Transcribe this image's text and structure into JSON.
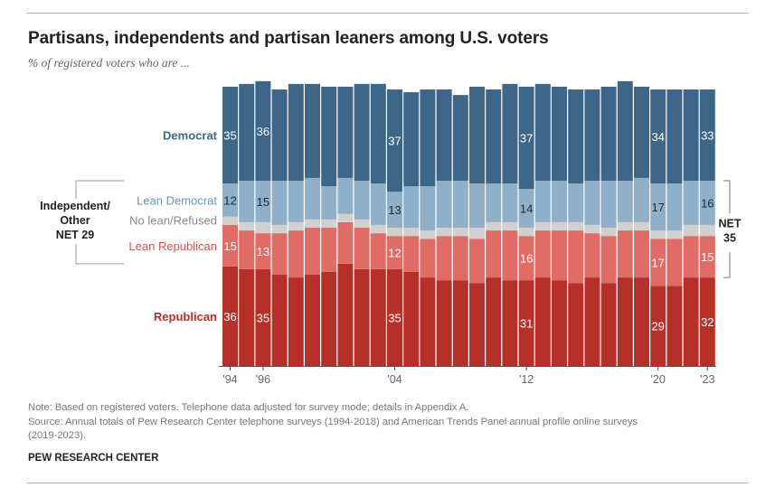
{
  "title": "Partisans, independents and partisan leaners among U.S. voters",
  "subtitle": "% of registered voters who are ...",
  "chart_data": {
    "type": "bar",
    "stacked": true,
    "y_unit": "%",
    "ylim": [
      0,
      100
    ],
    "years": [
      1994,
      1995,
      1996,
      1997,
      1998,
      1999,
      2000,
      2001,
      2002,
      2003,
      2004,
      2005,
      2006,
      2007,
      2008,
      2009,
      2010,
      2011,
      2012,
      2013,
      2014,
      2015,
      2016,
      2017,
      2018,
      2019,
      2020,
      2021,
      2022,
      2023
    ],
    "series": [
      {
        "name": "Republican",
        "color": "#b6302a",
        "values": [
          36,
          35,
          35,
          33,
          32,
          33,
          34,
          37,
          35,
          35,
          35,
          34,
          32,
          31,
          31,
          30,
          32,
          31,
          31,
          32,
          31,
          30,
          32,
          30,
          32,
          32,
          29,
          29,
          32,
          32
        ]
      },
      {
        "name": "Lean Republican",
        "color": "#e06c66",
        "values": [
          15,
          14,
          13,
          15,
          17,
          17,
          16,
          15,
          15,
          13,
          12,
          13,
          14,
          16,
          16,
          16,
          17,
          18,
          16,
          17,
          18,
          19,
          16,
          17,
          17,
          17,
          17,
          17,
          15,
          15
        ]
      },
      {
        "name": "No lean/Refused",
        "color": "#d0d0d0",
        "values": [
          3,
          3,
          4,
          3,
          3,
          3,
          3,
          3,
          3,
          3,
          3,
          3,
          3,
          3,
          3,
          4,
          3,
          3,
          3,
          3,
          3,
          3,
          3,
          3,
          3,
          3,
          3,
          3,
          4,
          4
        ]
      },
      {
        "name": "Lean Democrat",
        "color": "#8fb0c8",
        "values": [
          12,
          15,
          15,
          16,
          15,
          15,
          12,
          13,
          14,
          15,
          13,
          15,
          16,
          17,
          17,
          16,
          14,
          14,
          14,
          15,
          15,
          14,
          16,
          17,
          15,
          16,
          17,
          17,
          16,
          16
        ]
      },
      {
        "name": "Democrat",
        "color": "#3e6689",
        "values": [
          35,
          35,
          36,
          33,
          35,
          34,
          36,
          33,
          35,
          36,
          37,
          34,
          35,
          33,
          31,
          35,
          34,
          36,
          37,
          35,
          34,
          34,
          33,
          34,
          36,
          33,
          34,
          34,
          33,
          33
        ]
      }
    ],
    "data_labels": [
      {
        "year": 1994,
        "values": {
          "Democrat": "35",
          "Lean Democrat": "12",
          "Lean Republican": "15",
          "Republican": "36"
        }
      },
      {
        "year": 1996,
        "values": {
          "Democrat": "36",
          "Lean Democrat": "15",
          "Lean Republican": "13",
          "Republican": "35"
        }
      },
      {
        "year": 2004,
        "values": {
          "Democrat": "37",
          "Lean Democrat": "13",
          "Lean Republican": "12",
          "Republican": "35"
        }
      },
      {
        "year": 2012,
        "values": {
          "Democrat": "37",
          "Lean Democrat": "14",
          "Lean Republican": "16",
          "Republican": "31"
        }
      },
      {
        "year": 2020,
        "values": {
          "Democrat": "34",
          "Lean Democrat": "17",
          "Lean Republican": "17",
          "Republican": "29"
        }
      },
      {
        "year": 2023,
        "values": {
          "Democrat": "33",
          "Lean Democrat": "16",
          "Lean Republican": "15",
          "Republican": "32"
        }
      }
    ],
    "x_tick_labels": [
      {
        "year": 1994,
        "label": "'94"
      },
      {
        "year": 1996,
        "label": "'96"
      },
      {
        "year": 2004,
        "label": "'04"
      },
      {
        "year": 2012,
        "label": "'12"
      },
      {
        "year": 2020,
        "label": "'20"
      },
      {
        "year": 2023,
        "label": "'23"
      }
    ],
    "legend_labels": {
      "Democrat": "Democrat",
      "Lean Democrat": "Lean Democrat",
      "No lean/Refused": "No lean/Refused",
      "Lean Republican": "Lean Republican",
      "Republican": "Republican"
    },
    "annotations": {
      "left_group_lines": [
        "Independent/",
        "Other",
        "NET 29"
      ],
      "right_group_lines": [
        "NET",
        "35"
      ]
    }
  },
  "notes": {
    "note": "Note: Based on registered voters. Telephone data adjusted for survey mode; details in Appendix A.",
    "source_line1": "Source: Annual totals of Pew Research Center telephone surveys (1994-2018) and American Trends Panel annual profile online surveys",
    "source_line2": "(2019-2023)."
  },
  "brand": "PEW RESEARCH CENTER"
}
